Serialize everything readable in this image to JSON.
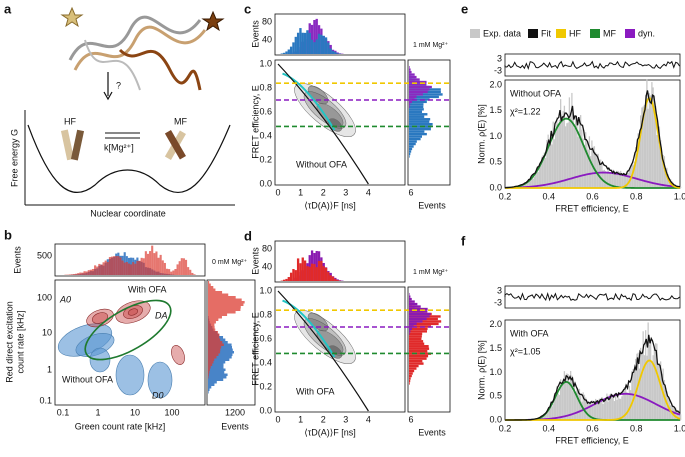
{
  "panels": {
    "a": {
      "label": "a",
      "question": "?",
      "hf": "HF",
      "mf": "MF",
      "rate": "k[Mg²⁺]",
      "ylabel": "Free energy G",
      "xlabel": "Nuclear coordinate"
    },
    "b": {
      "label": "b",
      "top_ylabel": "Events",
      "top_yticks": [
        "500"
      ],
      "condition": "0 mM Mg²⁺",
      "ylabel": [
        "Red direct excitation",
        "count rate [kHz]"
      ],
      "yticks": [
        "100",
        "10",
        "1",
        "0.1"
      ],
      "xlabel": "Green count rate [kHz]",
      "xticks": [
        "0.1",
        "1",
        "10",
        "100"
      ],
      "right_xticks": [
        "1200"
      ],
      "right_xlabel": "Events",
      "populations": [
        "A0",
        "DA",
        "D0"
      ],
      "with": "With OFA",
      "without": "Without OFA"
    },
    "c": {
      "label": "c",
      "top_ylabel": "Events",
      "top_yticks": [
        "80",
        "40"
      ],
      "condition": "1 mM Mg²⁺",
      "ylabel": "FRET efficiency, E",
      "yticks": [
        "0.0",
        "0.2",
        "0.4",
        "0.6",
        "0.8",
        "1.0"
      ],
      "xlabel": "⟨τD(A)⟩F [ns]",
      "xticks": [
        "0",
        "1",
        "2",
        "3",
        "4"
      ],
      "right_xticks": [
        "6"
      ],
      "right_xlabel": "Events",
      "sample": "Without OFA"
    },
    "d": {
      "label": "d",
      "top_ylabel": "Events",
      "top_yticks": [
        "80",
        "40"
      ],
      "condition": "1 mM Mg²⁺",
      "ylabel": "FRET efficiency, E",
      "yticks": [
        "0.0",
        "0.2",
        "0.4",
        "0.6",
        "0.8",
        "1.0"
      ],
      "xlabel": "⟨τD(A)⟩F [ns]",
      "xticks": [
        "0",
        "1",
        "2",
        "3",
        "4"
      ],
      "right_xticks": [
        "6"
      ],
      "right_xlabel": "Events",
      "sample": "With OFA"
    },
    "e": {
      "label": "e",
      "legend": [
        "Exp. data",
        "Fit",
        "HF",
        "MF",
        "dyn."
      ],
      "res_yticks": [
        "3",
        "-3"
      ],
      "ylabel": "Norm. ρ(E) [%]",
      "yticks": [
        "0.0",
        "0.5",
        "1.0",
        "1.5",
        "2.0"
      ],
      "xlabel": "FRET efficiency, E",
      "xticks": [
        "0.2",
        "0.4",
        "0.6",
        "0.8",
        "1.0"
      ],
      "sample": "Without OFA",
      "chi2": "χ²=1.22"
    },
    "f": {
      "label": "f",
      "res_yticks": [
        "3",
        "-3"
      ],
      "ylabel": "Norm. ρ(E) [%]",
      "yticks": [
        "0.0",
        "0.5",
        "1.0",
        "1.5",
        "2.0"
      ],
      "xlabel": "FRET efficiency, E",
      "xticks": [
        "0.2",
        "0.4",
        "0.6",
        "0.8",
        "1.0"
      ],
      "sample": "With OFA",
      "chi2": "χ²=1.05"
    }
  }
}
